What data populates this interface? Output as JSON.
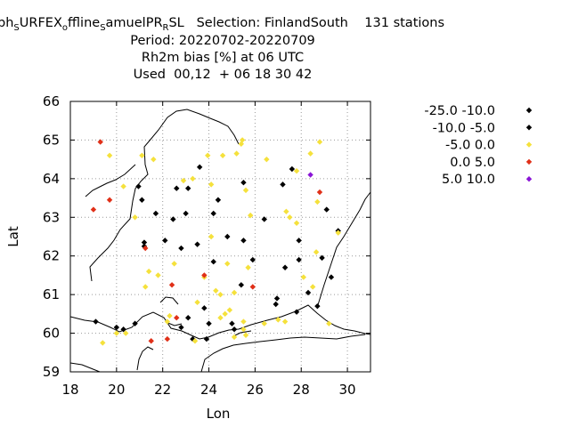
{
  "header": {
    "title_prefix": "ph",
    "title_sub1": "S",
    "title_mid1": "URFEX",
    "title_sub2": "o",
    "title_mid2": "ffline",
    "title_sub3": "S",
    "title_mid3": "amuelPR",
    "title_sub4": "R",
    "title_mid4": "SL   Selection: FinlandSouth    131 stations",
    "period": "Period: 20220702-20220709",
    "variable": "Rh2m bias [%] at  06 UTC",
    "used": "Used  00,12  + 06 18 30 42"
  },
  "chart_data": {
    "type": "scatter",
    "xlabel": "Lon",
    "ylabel": "Lat",
    "xlim": [
      18,
      31
    ],
    "ylim": [
      59,
      66
    ],
    "xticks": [
      18,
      20,
      22,
      24,
      26,
      28,
      30
    ],
    "yticks": [
      59,
      60,
      61,
      62,
      63,
      64,
      65,
      66
    ],
    "grid": true,
    "legend_position": "right",
    "series": [
      {
        "name": "-25.0 -10.0",
        "color": "#000000",
        "points": []
      },
      {
        "name": "-10.0 -5.0",
        "color": "#000000",
        "points": [
          [
            19.1,
            60.3
          ],
          [
            20.0,
            60.15
          ],
          [
            20.3,
            60.1
          ],
          [
            20.8,
            60.25
          ],
          [
            20.95,
            63.8
          ],
          [
            21.1,
            63.45
          ],
          [
            21.2,
            62.35
          ],
          [
            21.2,
            62.25
          ],
          [
            21.7,
            63.1
          ],
          [
            22.1,
            62.4
          ],
          [
            22.45,
            62.95
          ],
          [
            22.6,
            63.75
          ],
          [
            22.8,
            62.2
          ],
          [
            22.8,
            60.15
          ],
          [
            23.0,
            63.1
          ],
          [
            23.1,
            63.75
          ],
          [
            23.1,
            60.4
          ],
          [
            23.3,
            59.85
          ],
          [
            23.5,
            62.3
          ],
          [
            23.6,
            64.3
          ],
          [
            23.8,
            60.65
          ],
          [
            23.9,
            59.85
          ],
          [
            24.0,
            60.25
          ],
          [
            24.2,
            61.85
          ],
          [
            24.2,
            63.1
          ],
          [
            24.4,
            63.45
          ],
          [
            24.8,
            62.5
          ],
          [
            25.0,
            60.25
          ],
          [
            25.1,
            60.1
          ],
          [
            25.4,
            61.25
          ],
          [
            25.5,
            62.4
          ],
          [
            25.5,
            63.9
          ],
          [
            25.9,
            61.9
          ],
          [
            26.4,
            62.95
          ],
          [
            26.9,
            60.75
          ],
          [
            26.95,
            60.9
          ],
          [
            27.2,
            63.85
          ],
          [
            27.3,
            61.7
          ],
          [
            27.6,
            64.25
          ],
          [
            27.8,
            60.55
          ],
          [
            27.9,
            62.4
          ],
          [
            27.9,
            61.9
          ],
          [
            28.3,
            61.05
          ],
          [
            28.7,
            60.7
          ],
          [
            28.9,
            61.95
          ],
          [
            29.1,
            63.2
          ],
          [
            29.3,
            61.45
          ],
          [
            29.6,
            62.65
          ]
        ]
      },
      {
        "name": "-5.0 0.0",
        "color": "#f5e13c",
        "points": [
          [
            19.4,
            59.75
          ],
          [
            19.7,
            64.6
          ],
          [
            20.0,
            60.0
          ],
          [
            20.3,
            63.8
          ],
          [
            20.4,
            60.0
          ],
          [
            20.8,
            63.0
          ],
          [
            21.1,
            64.6
          ],
          [
            21.25,
            61.2
          ],
          [
            21.4,
            61.6
          ],
          [
            21.6,
            64.5
          ],
          [
            21.8,
            61.5
          ],
          [
            22.2,
            60.3
          ],
          [
            22.3,
            60.45
          ],
          [
            22.5,
            61.8
          ],
          [
            22.9,
            63.95
          ],
          [
            23.3,
            64.0
          ],
          [
            23.4,
            59.8
          ],
          [
            23.5,
            60.8
          ],
          [
            23.8,
            61.45
          ],
          [
            23.95,
            64.6
          ],
          [
            24.1,
            62.5
          ],
          [
            24.1,
            63.85
          ],
          [
            24.3,
            61.1
          ],
          [
            24.5,
            61.0
          ],
          [
            24.5,
            60.4
          ],
          [
            24.6,
            64.6
          ],
          [
            24.7,
            60.5
          ],
          [
            24.8,
            61.8
          ],
          [
            24.9,
            60.6
          ],
          [
            25.1,
            59.9
          ],
          [
            25.1,
            61.05
          ],
          [
            25.2,
            64.65
          ],
          [
            25.4,
            64.9
          ],
          [
            25.45,
            65.0
          ],
          [
            25.5,
            60.3
          ],
          [
            25.5,
            60.1
          ],
          [
            25.6,
            59.95
          ],
          [
            25.6,
            63.7
          ],
          [
            25.7,
            61.7
          ],
          [
            25.8,
            63.05
          ],
          [
            26.4,
            60.25
          ],
          [
            26.5,
            64.5
          ],
          [
            27.0,
            60.35
          ],
          [
            27.3,
            60.3
          ],
          [
            27.35,
            63.15
          ],
          [
            27.5,
            63.0
          ],
          [
            27.8,
            64.2
          ],
          [
            28.1,
            61.45
          ],
          [
            28.4,
            64.65
          ],
          [
            28.5,
            61.2
          ],
          [
            28.65,
            62.1
          ],
          [
            28.7,
            63.4
          ],
          [
            28.8,
            64.95
          ],
          [
            29.2,
            60.25
          ],
          [
            29.6,
            62.6
          ],
          [
            27.8,
            62.85
          ]
        ]
      },
      {
        "name": "0.0 5.0",
        "color": "#e03018",
        "points": [
          [
            19.3,
            64.95
          ],
          [
            19.0,
            63.2
          ],
          [
            19.7,
            63.45
          ],
          [
            21.25,
            62.2
          ],
          [
            21.5,
            59.8
          ],
          [
            22.2,
            59.85
          ],
          [
            22.4,
            61.25
          ],
          [
            22.6,
            60.4
          ],
          [
            23.8,
            61.5
          ],
          [
            25.9,
            61.2
          ],
          [
            28.8,
            63.65
          ]
        ]
      },
      {
        "name": "5.0 10.0",
        "color": "#8a14d6",
        "points": [
          [
            28.4,
            64.1
          ]
        ]
      }
    ]
  }
}
